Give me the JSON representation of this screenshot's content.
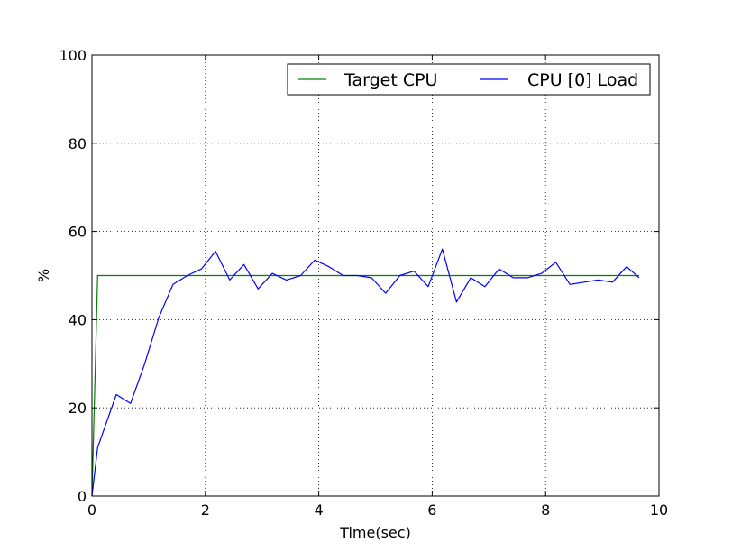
{
  "chart_data": {
    "type": "line",
    "xlabel": "Time(sec)",
    "ylabel": "%",
    "xlim": [
      0,
      10
    ],
    "ylim": [
      0,
      100
    ],
    "xticks": [
      "0",
      "2",
      "4",
      "6",
      "8",
      "10"
    ],
    "yticks": [
      "0",
      "20",
      "40",
      "60",
      "80",
      "100"
    ],
    "grid": true,
    "legend_position": "top-right",
    "series": [
      {
        "name": "Target CPU",
        "color": "#008000",
        "x": [
          0.0,
          0.1,
          9.65
        ],
        "y": [
          0,
          50,
          50
        ]
      },
      {
        "name": "CPU [0] Load",
        "color": "#0000ff",
        "x": [
          0.0,
          0.1,
          0.43,
          0.68,
          0.93,
          1.18,
          1.43,
          1.68,
          1.93,
          2.18,
          2.43,
          2.68,
          2.93,
          3.18,
          3.43,
          3.68,
          3.93,
          4.18,
          4.43,
          4.68,
          4.93,
          5.18,
          5.43,
          5.68,
          5.93,
          6.18,
          6.43,
          6.68,
          6.93,
          7.18,
          7.43,
          7.68,
          7.93,
          8.18,
          8.43,
          8.68,
          8.93,
          9.18,
          9.43,
          9.65
        ],
        "y": [
          0,
          11,
          23,
          21,
          30,
          40.5,
          48,
          50,
          51.5,
          55.5,
          49,
          52.5,
          47,
          50.5,
          49,
          50,
          53.5,
          52,
          50,
          50,
          49.5,
          46,
          50,
          51,
          47.5,
          56,
          44,
          49.5,
          47.5,
          51.5,
          49.5,
          49.5,
          50.5,
          53,
          48,
          48.5,
          49,
          48.5,
          52,
          49.5
        ]
      }
    ]
  }
}
